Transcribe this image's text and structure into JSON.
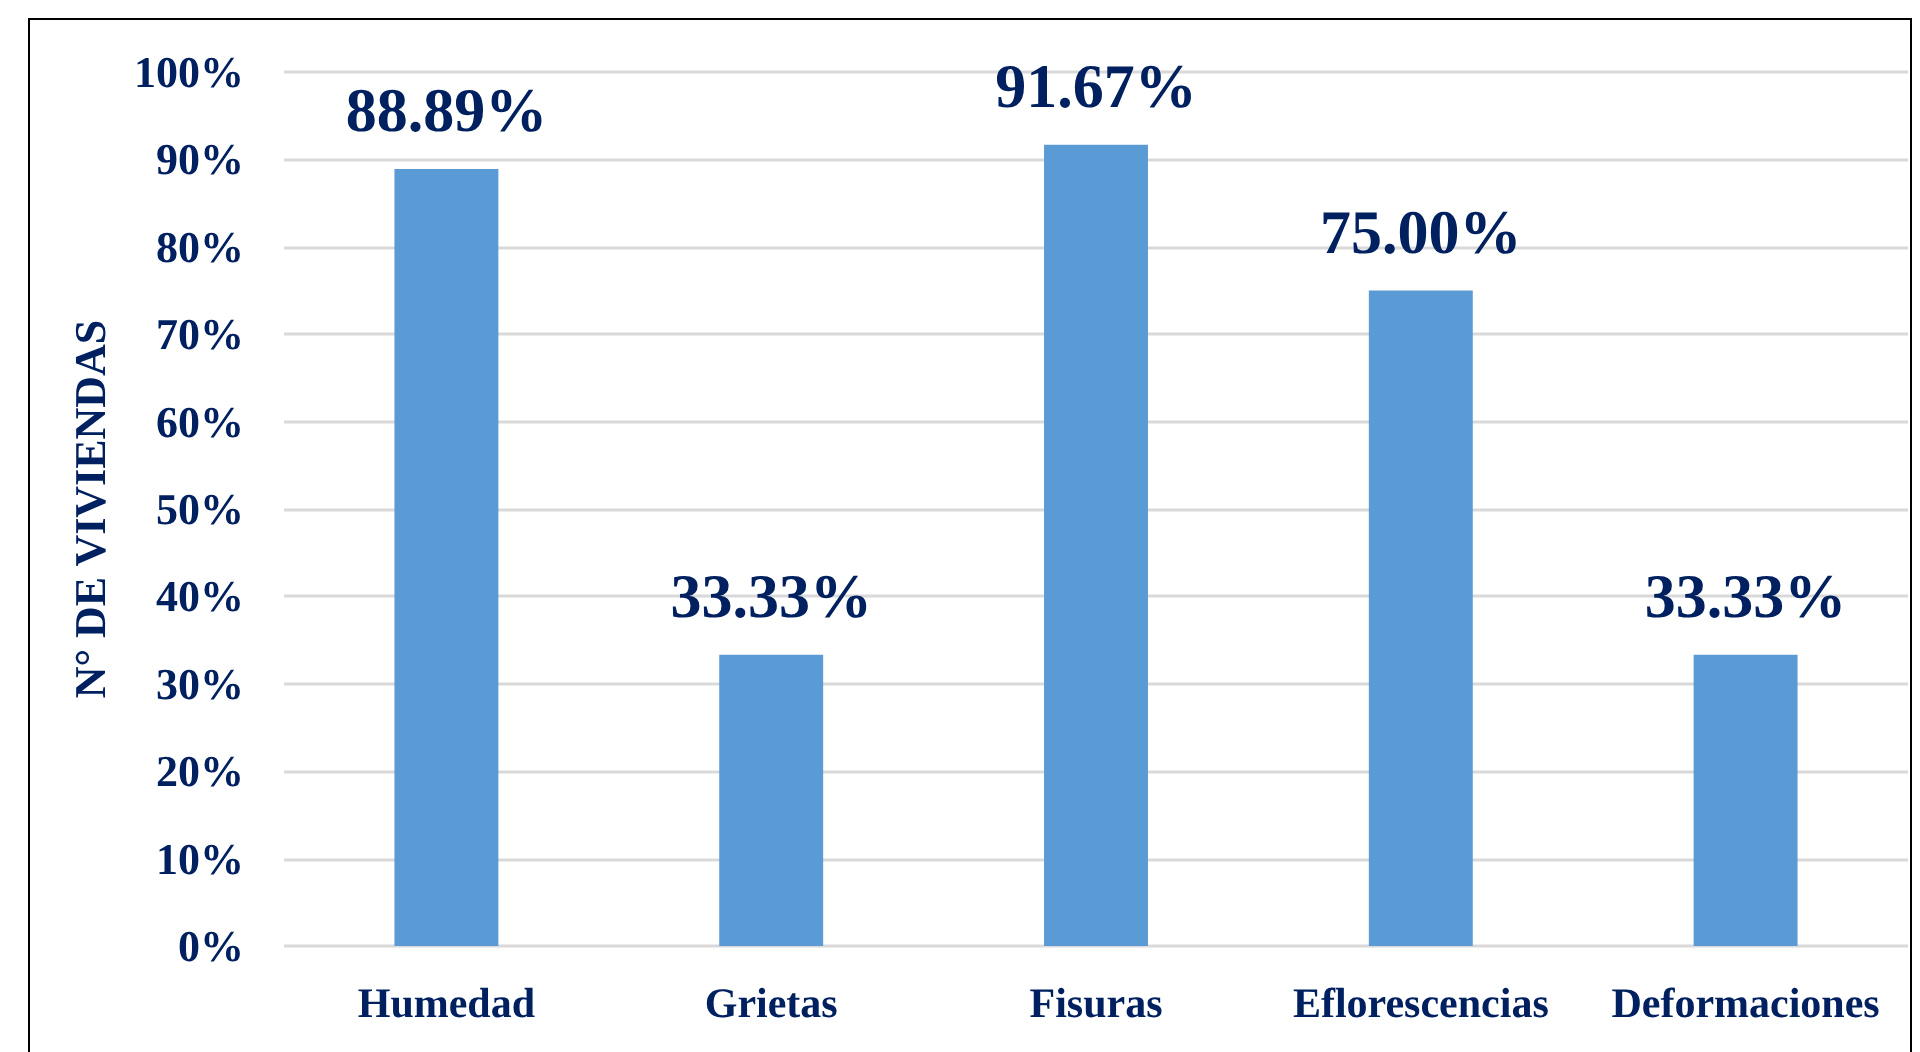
{
  "chart_data": {
    "type": "bar",
    "ylabel": "N° DE VIVIENDAS",
    "categories": [
      "Humedad",
      "Grietas",
      "Fisuras",
      "Eflorescencias",
      "Deformaciones"
    ],
    "values": [
      88.89,
      33.33,
      91.67,
      75.0,
      33.33
    ],
    "color": "#5b9bd5",
    "value_labels": [
      "88.89%",
      "33.33%",
      "91.67%",
      "75.00%",
      "33.33%"
    ],
    "ylim": [
      0,
      100
    ],
    "yticks": [
      {
        "value": 0,
        "label": "0%"
      },
      {
        "value": 10,
        "label": "10%"
      },
      {
        "value": 20,
        "label": "20%"
      },
      {
        "value": 30,
        "label": "30%"
      },
      {
        "value": 40,
        "label": "40%"
      },
      {
        "value": 50,
        "label": "50%"
      },
      {
        "value": 60,
        "label": "60%"
      },
      {
        "value": 70,
        "label": "70%"
      },
      {
        "value": 80,
        "label": "80%"
      },
      {
        "value": 90,
        "label": "90%"
      },
      {
        "value": 100,
        "label": "100%"
      }
    ],
    "grid": "y"
  }
}
